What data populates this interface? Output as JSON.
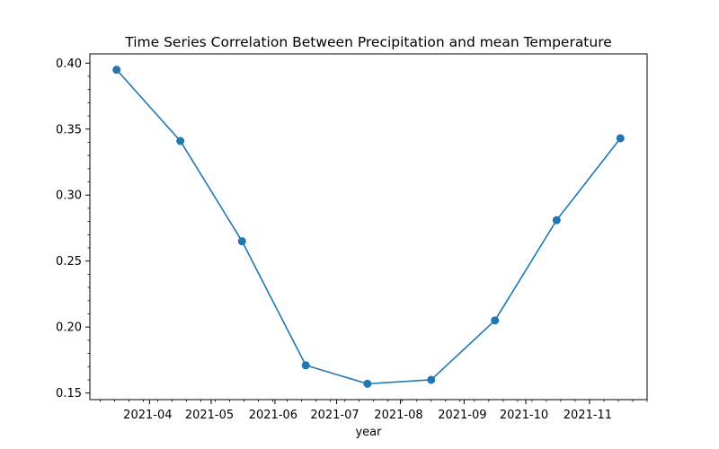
{
  "chart_data": {
    "type": "line",
    "title": "Time Series Correlation Between Precipitation and mean Temperature",
    "xlabel": "year",
    "ylabel": "",
    "x": [
      "2021-03-16",
      "2021-04-16",
      "2021-05-16",
      "2021-06-16",
      "2021-07-16",
      "2021-08-16",
      "2021-09-16",
      "2021-10-16",
      "2021-11-16"
    ],
    "series": [
      {
        "values": [
          0.395,
          0.341,
          0.265,
          0.171,
          0.157,
          0.16,
          0.205,
          0.281,
          0.343
        ],
        "color": "#1f77b4"
      }
    ],
    "x_ticks": [
      "2021-04",
      "2021-05",
      "2021-06",
      "2021-07",
      "2021-08",
      "2021-09",
      "2021-10",
      "2021-11"
    ],
    "x_tick_dates": [
      "2021-04-01",
      "2021-05-01",
      "2021-06-01",
      "2021-07-01",
      "2021-08-01",
      "2021-09-01",
      "2021-10-01",
      "2021-11-01"
    ],
    "xlim": [
      "2021-03-03",
      "2021-11-29"
    ],
    "y_ticks": [
      0.15,
      0.2,
      0.25,
      0.3,
      0.35,
      0.4
    ],
    "y_tick_labels": [
      "0.15",
      "0.20",
      "0.25",
      "0.30",
      "0.35",
      "0.40"
    ],
    "ylim": [
      0.145,
      0.407
    ],
    "grid": false,
    "legend": "none"
  }
}
